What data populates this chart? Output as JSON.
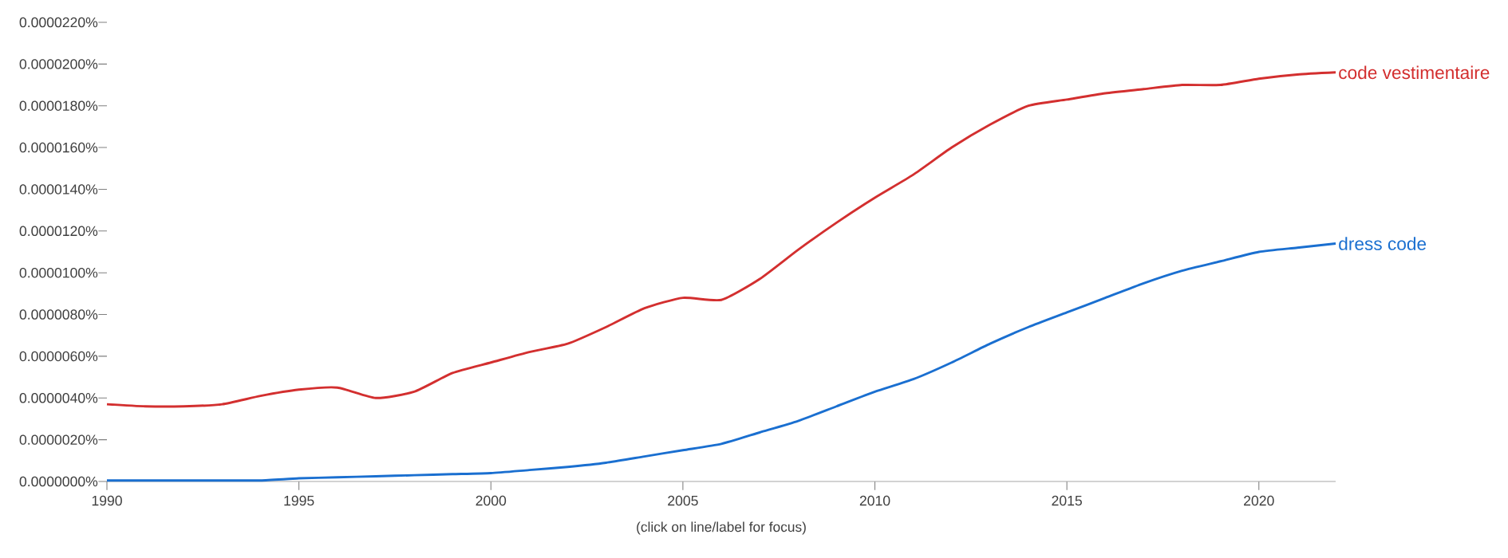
{
  "chart_data": {
    "type": "line",
    "x": [
      1990,
      1991,
      1992,
      1993,
      1994,
      1995,
      1996,
      1997,
      1998,
      1999,
      2000,
      2001,
      2002,
      2003,
      2004,
      2005,
      2006,
      2007,
      2008,
      2009,
      2010,
      2011,
      2012,
      2013,
      2014,
      2015,
      2016,
      2017,
      2018,
      2019,
      2020,
      2021,
      2022
    ],
    "series": [
      {
        "name": "code vestimentaire",
        "color": "#d32f2f",
        "values": [
          3.7e-06,
          3.6e-06,
          3.6e-06,
          3.7e-06,
          4.1e-06,
          4.4e-06,
          4.5e-06,
          4e-06,
          4.3e-06,
          5.2e-06,
          5.7e-06,
          6.2e-06,
          6.6e-06,
          7.4e-06,
          8.3e-06,
          8.8e-06,
          8.7e-06,
          9.7e-06,
          1.11e-05,
          1.24e-05,
          1.36e-05,
          1.47e-05,
          1.6e-05,
          1.71e-05,
          1.8e-05,
          1.83e-05,
          1.86e-05,
          1.88e-05,
          1.9e-05,
          1.9e-05,
          1.93e-05,
          1.95e-05,
          1.96e-05
        ]
      },
      {
        "name": "dress code",
        "color": "#1a6fd0",
        "values": [
          5e-08,
          5e-08,
          5e-08,
          5e-08,
          5e-08,
          1.5e-07,
          2e-07,
          2.5e-07,
          3e-07,
          3.5e-07,
          4e-07,
          5.5e-07,
          7e-07,
          9e-07,
          1.2e-06,
          1.5e-06,
          1.8e-06,
          2.35e-06,
          2.9e-06,
          3.6e-06,
          4.3e-06,
          4.9e-06,
          5.7e-06,
          6.6e-06,
          7.4e-06,
          8.1e-06,
          8.8e-06,
          9.5e-06,
          1.01e-05,
          1.055e-05,
          1.1e-05,
          1.12e-05,
          1.14e-05
        ]
      }
    ],
    "xlim": [
      1990,
      2022
    ],
    "xticks": [
      1990,
      1995,
      2000,
      2005,
      2010,
      2015,
      2020
    ],
    "ylim": [
      0,
      2.2e-05
    ],
    "yticks": [
      {
        "value": 0,
        "label": "0.0000000%"
      },
      {
        "value": 2e-06,
        "label": "0.0000020%"
      },
      {
        "value": 4e-06,
        "label": "0.0000040%"
      },
      {
        "value": 6e-06,
        "label": "0.0000060%"
      },
      {
        "value": 8e-06,
        "label": "0.0000080%"
      },
      {
        "value": 1e-05,
        "label": "0.0000100%"
      },
      {
        "value": 1.2e-05,
        "label": "0.0000120%"
      },
      {
        "value": 1.4e-05,
        "label": "0.0000140%"
      },
      {
        "value": 1.6e-05,
        "label": "0.0000160%"
      },
      {
        "value": 1.8e-05,
        "label": "0.0000180%"
      },
      {
        "value": 2e-05,
        "label": "0.0000200%"
      },
      {
        "value": 2.2e-05,
        "label": "0.0000220%"
      }
    ],
    "marker": "none",
    "annotations": [
      "(click on line/label for focus)"
    ]
  }
}
